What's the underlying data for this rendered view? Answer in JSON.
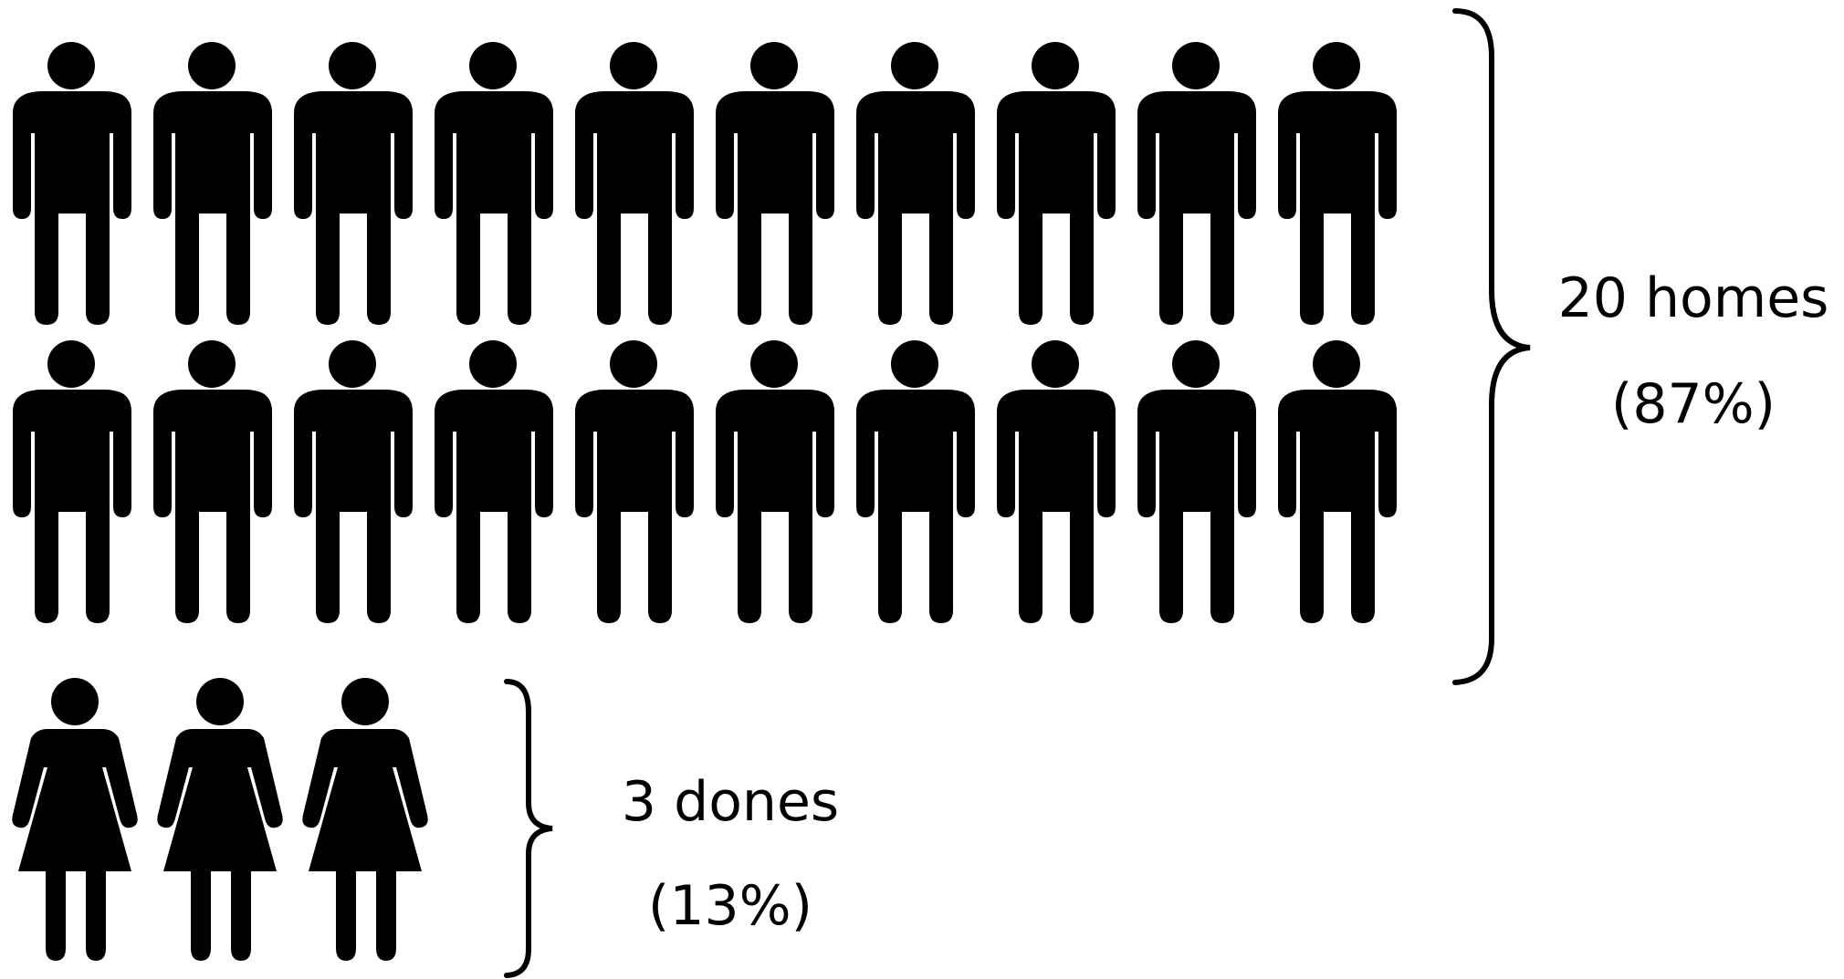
{
  "chart_data": {
    "type": "pictogram",
    "title": "",
    "colors": {
      "icon": "#000000",
      "bracket": "#000000",
      "background": "#ffffff"
    },
    "groups": [
      {
        "icon": "man-icon",
        "count": 20,
        "percent": 87,
        "label_count": "20 homes",
        "label_percent": "(87%)"
      },
      {
        "icon": "woman-icon",
        "count": 3,
        "percent": 13,
        "label_count": "3 dones",
        "label_percent": "(13%)"
      }
    ]
  }
}
